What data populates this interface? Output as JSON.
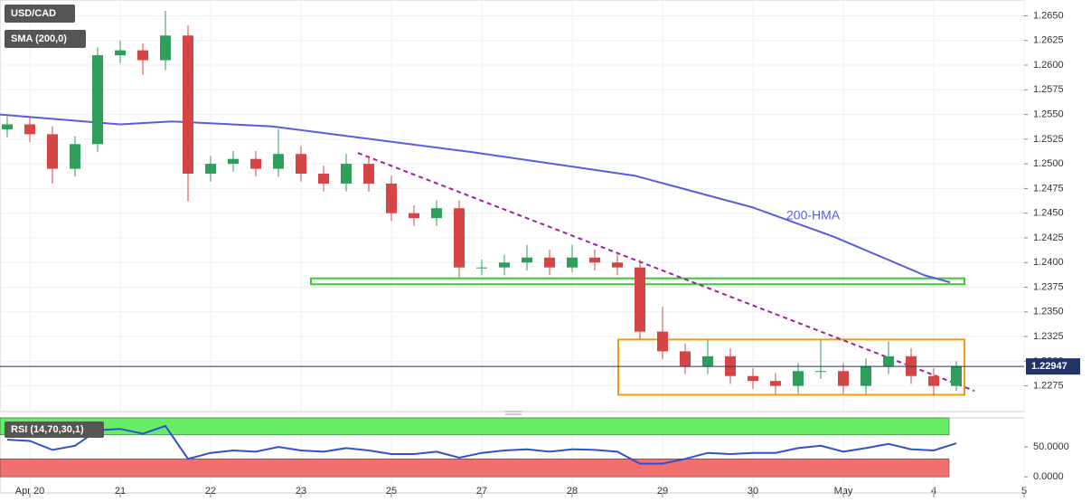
{
  "chart_data": [
    {
      "type": "candlestick",
      "title": "USD/CAD",
      "up_color": "#2e9e5a",
      "down_color": "#d64545",
      "x": [
        -0.25,
        0,
        0.25,
        0.5,
        0.75,
        1,
        1.25,
        1.5,
        1.75,
        2,
        2.25,
        2.5,
        2.75,
        3,
        3.25,
        3.5,
        3.75,
        4,
        4.25,
        4.5,
        4.75,
        5,
        5.25,
        5.5,
        5.75,
        6,
        6.25,
        6.5,
        6.75,
        7,
        7.25,
        7.5,
        7.75,
        8,
        8.25,
        8.5,
        8.75,
        9,
        9.25,
        9.5,
        9.75,
        10,
        10.25
      ],
      "open": [
        1.2535,
        1.254,
        1.253,
        1.2495,
        1.252,
        1.261,
        1.2615,
        1.2605,
        1.263,
        1.249,
        1.25,
        1.2505,
        1.2495,
        1.251,
        1.249,
        1.248,
        1.25,
        1.248,
        1.245,
        1.2445,
        1.2455,
        1.2395,
        1.2395,
        1.24,
        1.2405,
        1.2395,
        1.2405,
        1.24,
        1.2395,
        1.233,
        1.231,
        1.2295,
        1.2305,
        1.2285,
        1.228,
        1.2275,
        1.229,
        1.229,
        1.2275,
        1.2295,
        1.2305,
        1.2285,
        1.2275
      ],
      "high": [
        1.2548,
        1.2548,
        1.2538,
        1.2528,
        1.2618,
        1.2625,
        1.2622,
        1.2655,
        1.264,
        1.2508,
        1.2513,
        1.2513,
        1.2535,
        1.2518,
        1.2498,
        1.251,
        1.2508,
        1.2488,
        1.2458,
        1.2463,
        1.2463,
        1.2403,
        1.2408,
        1.2418,
        1.2413,
        1.2418,
        1.2413,
        1.2408,
        1.2403,
        1.2355,
        1.2318,
        1.2322,
        1.2313,
        1.2293,
        1.2288,
        1.2298,
        1.2322,
        1.2298,
        1.2303,
        1.232,
        1.2313,
        1.2293,
        1.23
      ],
      "low": [
        1.2527,
        1.2522,
        1.248,
        1.2487,
        1.2512,
        1.2602,
        1.259,
        1.2595,
        1.2462,
        1.2482,
        1.2492,
        1.2487,
        1.2487,
        1.2482,
        1.2472,
        1.2472,
        1.2472,
        1.2442,
        1.2437,
        1.2437,
        1.2385,
        1.2387,
        1.2387,
        1.2392,
        1.2387,
        1.239,
        1.2392,
        1.2387,
        1.2322,
        1.2302,
        1.2287,
        1.2287,
        1.2277,
        1.2272,
        1.2267,
        1.2267,
        1.2282,
        1.2267,
        1.2267,
        1.2287,
        1.2277,
        1.2265,
        1.227
      ],
      "close": [
        1.254,
        1.253,
        1.2495,
        1.252,
        1.261,
        1.2615,
        1.2605,
        1.263,
        1.249,
        1.25,
        1.2505,
        1.2495,
        1.251,
        1.249,
        1.248,
        1.25,
        1.248,
        1.245,
        1.2445,
        1.2455,
        1.2395,
        1.2395,
        1.24,
        1.2405,
        1.2395,
        1.2405,
        1.24,
        1.2395,
        1.233,
        1.231,
        1.2295,
        1.2305,
        1.2285,
        1.228,
        1.2275,
        1.229,
        1.229,
        1.2275,
        1.2295,
        1.2305,
        1.2285,
        1.2275,
        1.2295
      ],
      "overlays": [
        {
          "type": "line",
          "name": "SMA (200,0)",
          "color": "#5b5be0",
          "x": [
            -0.33,
            1.0,
            1.57,
            2.68,
            4.88,
            6.69,
            7.99,
            8.9,
            9.9,
            10.18
          ],
          "values": [
            1.255,
            1.254,
            1.2543,
            1.2538,
            1.2512,
            1.2488,
            1.2456,
            1.2426,
            1.2387,
            1.238
          ]
        },
        {
          "type": "line",
          "dashed": true,
          "color": "#a020a0",
          "x": [
            3.63,
            10.45
          ],
          "values": [
            1.2511,
            1.227
          ]
        }
      ],
      "annotation": "200-HMA",
      "zones": [
        {
          "x": [
            3.11,
            10.34
          ],
          "y": [
            1.2378,
            1.2384
          ],
          "color": "#33cc33"
        },
        {
          "x": [
            6.51,
            10.34
          ],
          "y": [
            1.2266,
            1.2322
          ],
          "color": "#f39c12"
        }
      ],
      "last_price": 1.22947,
      "xlim": [
        -0.33,
        11.0
      ],
      "xticks": [
        {
          "value": 0,
          "label": "Apr 20"
        },
        {
          "value": 1,
          "label": "21"
        },
        {
          "value": 2,
          "label": "22"
        },
        {
          "value": 3,
          "label": "23"
        },
        {
          "value": 4,
          "label": "25"
        },
        {
          "value": 5,
          "label": "27"
        },
        {
          "value": 6,
          "label": "28"
        },
        {
          "value": 7,
          "label": "29"
        },
        {
          "value": 8,
          "label": "30"
        },
        {
          "value": 9,
          "label": "May"
        },
        {
          "value": 10,
          "label": "4"
        },
        {
          "value": 11,
          "label": "5"
        }
      ],
      "ylim": [
        1.2249,
        1.2666
      ],
      "yticks": [
        {
          "value": 1.2275,
          "label": "1.2275"
        },
        {
          "value": 1.23,
          "label": "1.2300"
        },
        {
          "value": 1.2325,
          "label": "1.2325"
        },
        {
          "value": 1.235,
          "label": "1.2350"
        },
        {
          "value": 1.2375,
          "label": "1.2375"
        },
        {
          "value": 1.24,
          "label": "1.2400"
        },
        {
          "value": 1.2425,
          "label": "1.2425"
        },
        {
          "value": 1.245,
          "label": "1.2450"
        },
        {
          "value": 1.2475,
          "label": "1.2475"
        },
        {
          "value": 1.25,
          "label": "1.2500"
        },
        {
          "value": 1.2525,
          "label": "1.2525"
        },
        {
          "value": 1.255,
          "label": "1.2550"
        },
        {
          "value": 1.2575,
          "label": "1.2575"
        },
        {
          "value": 1.26,
          "label": "1.2600"
        },
        {
          "value": 1.2625,
          "label": "1.2625"
        },
        {
          "value": 1.265,
          "label": "1.2650"
        }
      ],
      "grid": true
    },
    {
      "type": "line",
      "title": "RSI (14,70,30,1)",
      "color": "#3050d0",
      "values": [
        62,
        60,
        45,
        52,
        78,
        80,
        72,
        85,
        30,
        40,
        44,
        42,
        50,
        44,
        42,
        48,
        44,
        38,
        38,
        42,
        32,
        40,
        44,
        46,
        42,
        46,
        45,
        42,
        22,
        22,
        30,
        40,
        38,
        40,
        40,
        48,
        52,
        42,
        48,
        55,
        46,
        44,
        56
      ],
      "bands": [
        {
          "from": 70,
          "to": 100,
          "color": "#66ee66"
        },
        {
          "from": 0,
          "to": 30,
          "color": "#f07070"
        }
      ],
      "ylim": [
        -27,
        98.5
      ],
      "yticks": [
        {
          "value": 0,
          "label": "0.0000"
        },
        {
          "value": 50,
          "label": "50.0000"
        }
      ]
    }
  ]
}
